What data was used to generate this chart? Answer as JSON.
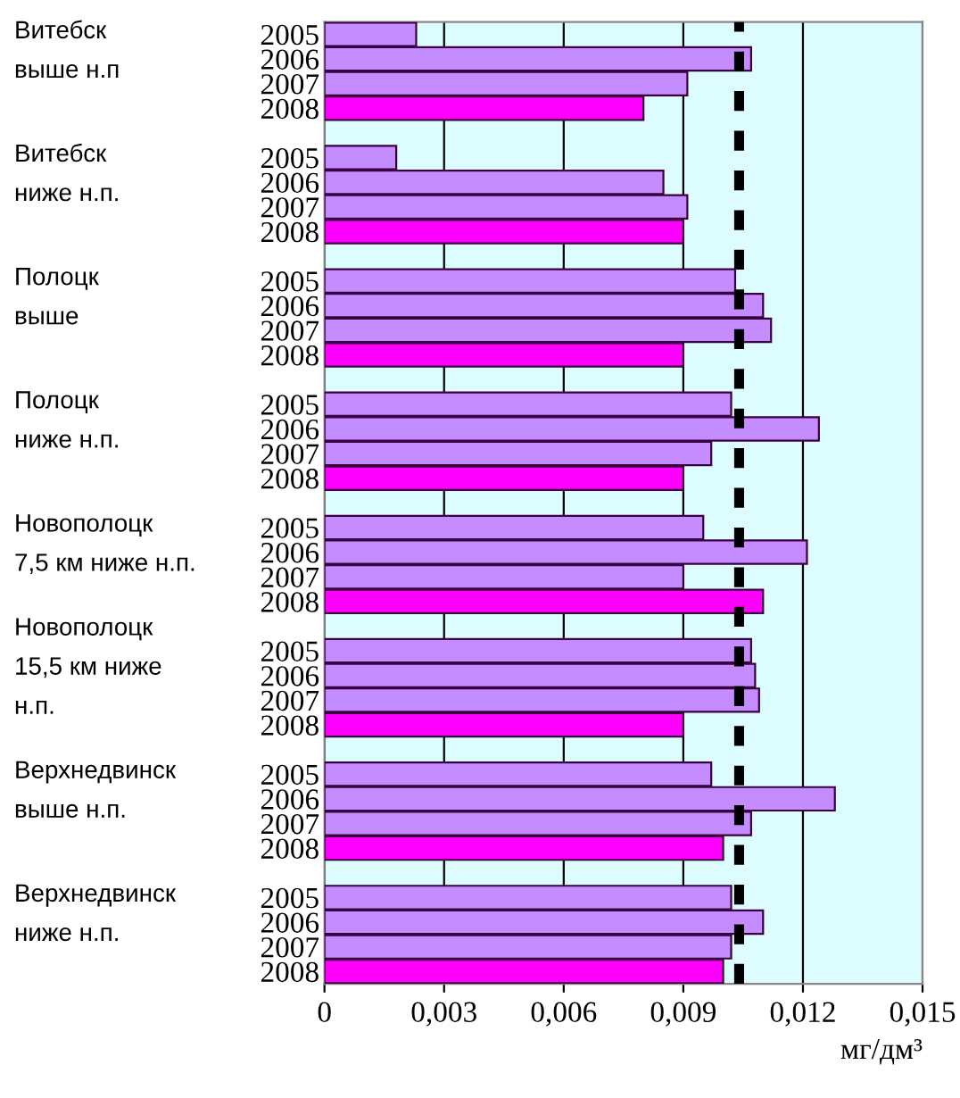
{
  "chart_data": {
    "type": "bar",
    "orientation": "horizontal",
    "xlabel": "мг/дм³",
    "categories": [
      "2005",
      "2006",
      "2007",
      "2008",
      null,
      "2005",
      "2006",
      "2007",
      "2008",
      null,
      "2005",
      "2006",
      "2007",
      "2008",
      null,
      "2005",
      "2006",
      "2007",
      "2008",
      null,
      "2005",
      "2006",
      "2007",
      "2008",
      null,
      "2005",
      "2006",
      "2007",
      "2008",
      null,
      "2005",
      "2006",
      "2007",
      "2008",
      null,
      "2005",
      "2006",
      "2007",
      "2008"
    ],
    "values": [
      0.0023,
      0.0107,
      0.0091,
      0.008,
      null,
      0.0018,
      0.0085,
      0.0091,
      0.009,
      null,
      0.0103,
      0.011,
      0.0112,
      0.009,
      null,
      0.0102,
      0.0124,
      0.0097,
      0.009,
      null,
      0.0095,
      0.0121,
      0.009,
      0.011,
      null,
      0.0107,
      0.0108,
      0.0109,
      0.009,
      null,
      0.0097,
      0.0128,
      0.0107,
      0.01,
      null,
      0.0102,
      0.011,
      0.0102,
      0.01
    ],
    "colors": [
      "#c58cff",
      "#c58cff",
      "#c58cff",
      "#ff00ff",
      null,
      "#c58cff",
      "#c58cff",
      "#c58cff",
      "#ff00ff",
      null,
      "#c58cff",
      "#c58cff",
      "#c58cff",
      "#ff00ff",
      null,
      "#c58cff",
      "#c58cff",
      "#c58cff",
      "#ff00ff",
      null,
      "#c58cff",
      "#c58cff",
      "#c58cff",
      "#ff00ff",
      null,
      "#c58cff",
      "#c58cff",
      "#c58cff",
      "#ff00ff",
      null,
      "#c58cff",
      "#c58cff",
      "#c58cff",
      "#ff00ff",
      null,
      "#c58cff",
      "#c58cff",
      "#c58cff",
      "#ff00ff"
    ],
    "xlim": [
      0,
      0.015
    ],
    "xticks": [
      0,
      {
        "value": 0.003,
        "label": "0,003"
      },
      {
        "value": 0.006,
        "label": "0,006"
      },
      {
        "value": 0.009,
        "label": "0,009"
      },
      {
        "value": 0.012,
        "label": "0,012"
      },
      {
        "value": 0.015,
        "label": "0,015"
      }
    ],
    "grid": "x",
    "ref_lines": [
      {
        "axis": "x",
        "value": 0.0104,
        "color": "#000000",
        "line_style": "dashed"
      }
    ],
    "annotations": [
      "Витебск\nвыше н.п",
      "Витебск\nниже н.п.",
      "Полоцк\nвыше",
      "Полоцк\nниже н.п.",
      "Новополоцк\n7,5 км ниже н.п.",
      "Новополоцк\n15,5 км ниже\nн.п.",
      "Верхнедвинск\nвыше н.п.",
      "Верхнедвинск\nниже н.п."
    ]
  }
}
